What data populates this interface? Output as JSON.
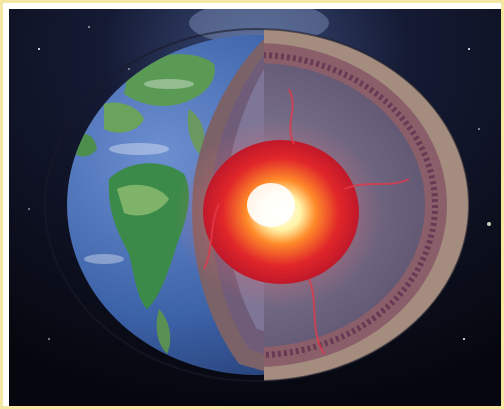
{
  "image": {
    "kind": "illustration",
    "subject": "earth-cutaway",
    "colors": {
      "frame": "#f3e7a3",
      "space": "#090b16",
      "ocean": "#3c62a8",
      "land": "#3b8a4a",
      "crust": "#8f7b70",
      "mantle": "#6f6680",
      "outer_core": "#e0262a",
      "inner_core": "#fff2a0"
    }
  }
}
